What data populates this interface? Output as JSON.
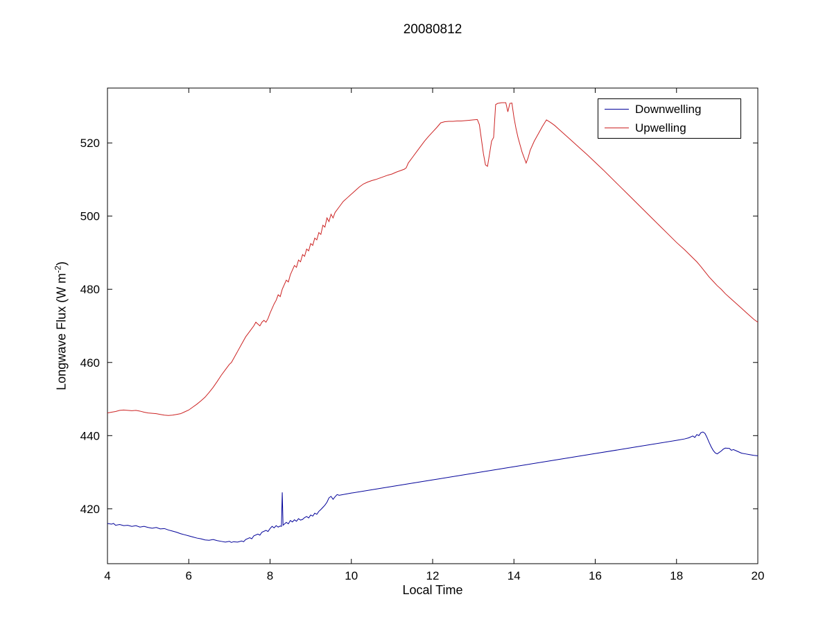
{
  "figure": {
    "title": "20080812"
  },
  "axes": {
    "xlabel": "Local Time",
    "ylabel_prefix": "Longwave Flux (W m",
    "ylabel_sup": "-2",
    "ylabel_suffix": ")"
  },
  "legend": {
    "entries": [
      {
        "label": "Downwelling"
      },
      {
        "label": "Upwelling"
      }
    ]
  },
  "chart_data": {
    "type": "line",
    "title": "20080812",
    "xlabel": "Local Time",
    "ylabel": "Longwave Flux (W m^-2)",
    "xlim": [
      4,
      20
    ],
    "ylim": [
      405,
      535
    ],
    "xticks": [
      4,
      6,
      8,
      10,
      12,
      14,
      16,
      18,
      20
    ],
    "yticks": [
      420,
      440,
      460,
      480,
      500,
      520
    ],
    "grid": false,
    "legend_position": "top-right",
    "series": [
      {
        "name": "Downwelling",
        "color": "#000099",
        "data": [
          [
            4.0,
            416.0
          ],
          [
            4.1,
            415.8
          ],
          [
            4.15,
            416.0
          ],
          [
            4.2,
            415.5
          ],
          [
            4.3,
            415.7
          ],
          [
            4.4,
            415.4
          ],
          [
            4.5,
            415.5
          ],
          [
            4.6,
            415.2
          ],
          [
            4.7,
            415.4
          ],
          [
            4.8,
            415.0
          ],
          [
            4.9,
            415.2
          ],
          [
            5.0,
            414.9
          ],
          [
            5.1,
            414.7
          ],
          [
            5.2,
            414.9
          ],
          [
            5.3,
            414.5
          ],
          [
            5.4,
            414.6
          ],
          [
            5.5,
            414.2
          ],
          [
            5.6,
            413.9
          ],
          [
            5.7,
            413.6
          ],
          [
            5.8,
            413.2
          ],
          [
            5.9,
            412.9
          ],
          [
            6.0,
            412.6
          ],
          [
            6.1,
            412.3
          ],
          [
            6.2,
            412.0
          ],
          [
            6.3,
            411.8
          ],
          [
            6.4,
            411.5
          ],
          [
            6.5,
            411.4
          ],
          [
            6.6,
            411.6
          ],
          [
            6.7,
            411.3
          ],
          [
            6.8,
            411.1
          ],
          [
            6.9,
            410.9
          ],
          [
            7.0,
            411.1
          ],
          [
            7.05,
            410.8
          ],
          [
            7.1,
            411.0
          ],
          [
            7.2,
            410.9
          ],
          [
            7.3,
            411.2
          ],
          [
            7.35,
            411.0
          ],
          [
            7.4,
            411.6
          ],
          [
            7.5,
            412.1
          ],
          [
            7.55,
            411.8
          ],
          [
            7.6,
            412.6
          ],
          [
            7.7,
            413.1
          ],
          [
            7.75,
            412.8
          ],
          [
            7.8,
            413.6
          ],
          [
            7.9,
            414.1
          ],
          [
            7.95,
            413.8
          ],
          [
            8.0,
            414.6
          ],
          [
            8.05,
            415.2
          ],
          [
            8.1,
            414.8
          ],
          [
            8.15,
            415.4
          ],
          [
            8.2,
            415.0
          ],
          [
            8.25,
            415.3
          ],
          [
            8.28,
            415.2
          ],
          [
            8.3,
            424.5
          ],
          [
            8.32,
            415.5
          ],
          [
            8.35,
            415.8
          ],
          [
            8.4,
            416.3
          ],
          [
            8.45,
            415.9
          ],
          [
            8.5,
            416.8
          ],
          [
            8.55,
            416.4
          ],
          [
            8.6,
            417.0
          ],
          [
            8.65,
            416.6
          ],
          [
            8.7,
            417.3
          ],
          [
            8.75,
            416.9
          ],
          [
            8.8,
            417.1
          ],
          [
            8.85,
            417.6
          ],
          [
            8.9,
            417.9
          ],
          [
            8.95,
            417.5
          ],
          [
            9.0,
            418.3
          ],
          [
            9.05,
            418.0
          ],
          [
            9.1,
            418.8
          ],
          [
            9.15,
            418.5
          ],
          [
            9.2,
            419.3
          ],
          [
            9.25,
            419.8
          ],
          [
            9.3,
            420.4
          ],
          [
            9.35,
            421.0
          ],
          [
            9.4,
            421.8
          ],
          [
            9.45,
            423.0
          ],
          [
            9.5,
            423.4
          ],
          [
            9.55,
            422.6
          ],
          [
            9.6,
            423.3
          ],
          [
            9.65,
            423.9
          ],
          [
            9.7,
            423.7
          ],
          [
            10.0,
            424.3
          ],
          [
            11.0,
            426.1
          ],
          [
            12.0,
            427.9
          ],
          [
            13.0,
            429.7
          ],
          [
            14.0,
            431.5
          ],
          [
            15.0,
            433.3
          ],
          [
            16.0,
            435.1
          ],
          [
            17.0,
            436.9
          ],
          [
            18.0,
            438.7
          ],
          [
            18.2,
            439.1
          ],
          [
            18.3,
            439.4
          ],
          [
            18.4,
            439.9
          ],
          [
            18.45,
            439.5
          ],
          [
            18.5,
            440.3
          ],
          [
            18.55,
            440.0
          ],
          [
            18.6,
            440.8
          ],
          [
            18.65,
            441.0
          ],
          [
            18.7,
            440.6
          ],
          [
            18.75,
            439.5
          ],
          [
            18.8,
            438.2
          ],
          [
            18.85,
            437.0
          ],
          [
            18.9,
            436.0
          ],
          [
            18.95,
            435.3
          ],
          [
            19.0,
            435.0
          ],
          [
            19.05,
            435.4
          ],
          [
            19.1,
            435.8
          ],
          [
            19.15,
            436.3
          ],
          [
            19.2,
            436.6
          ],
          [
            19.3,
            436.5
          ],
          [
            19.35,
            436.0
          ],
          [
            19.4,
            436.2
          ],
          [
            19.5,
            435.7
          ],
          [
            19.6,
            435.2
          ],
          [
            19.7,
            435.0
          ],
          [
            19.8,
            434.8
          ],
          [
            19.9,
            434.6
          ],
          [
            20.0,
            434.5
          ]
        ]
      },
      {
        "name": "Upwelling",
        "color": "#cc2222",
        "data": [
          [
            4.0,
            446.2
          ],
          [
            4.1,
            446.4
          ],
          [
            4.2,
            446.6
          ],
          [
            4.3,
            446.9
          ],
          [
            4.4,
            447.0
          ],
          [
            4.5,
            446.9
          ],
          [
            4.6,
            446.8
          ],
          [
            4.7,
            446.9
          ],
          [
            4.8,
            446.7
          ],
          [
            4.9,
            446.4
          ],
          [
            5.0,
            446.2
          ],
          [
            5.1,
            446.1
          ],
          [
            5.2,
            446.0
          ],
          [
            5.3,
            445.8
          ],
          [
            5.4,
            445.6
          ],
          [
            5.5,
            445.5
          ],
          [
            5.6,
            445.6
          ],
          [
            5.7,
            445.8
          ],
          [
            5.8,
            446.0
          ],
          [
            5.9,
            446.5
          ],
          [
            6.0,
            447.0
          ],
          [
            6.1,
            447.8
          ],
          [
            6.2,
            448.6
          ],
          [
            6.3,
            449.5
          ],
          [
            6.4,
            450.5
          ],
          [
            6.5,
            451.8
          ],
          [
            6.6,
            453.2
          ],
          [
            6.7,
            454.8
          ],
          [
            6.8,
            456.5
          ],
          [
            6.9,
            458.0
          ],
          [
            7.0,
            459.5
          ],
          [
            7.05,
            460.0
          ],
          [
            7.1,
            461.0
          ],
          [
            7.2,
            463.0
          ],
          [
            7.3,
            465.0
          ],
          [
            7.4,
            467.0
          ],
          [
            7.5,
            468.5
          ],
          [
            7.6,
            470.0
          ],
          [
            7.65,
            471.0
          ],
          [
            7.7,
            470.5
          ],
          [
            7.75,
            470.0
          ],
          [
            7.8,
            471.0
          ],
          [
            7.85,
            471.5
          ],
          [
            7.9,
            471.0
          ],
          [
            7.95,
            472.0
          ],
          [
            8.0,
            473.5
          ],
          [
            8.1,
            476.0
          ],
          [
            8.15,
            477.0
          ],
          [
            8.2,
            478.5
          ],
          [
            8.25,
            478.0
          ],
          [
            8.3,
            480.0
          ],
          [
            8.4,
            482.5
          ],
          [
            8.45,
            482.0
          ],
          [
            8.5,
            484.0
          ],
          [
            8.6,
            486.5
          ],
          [
            8.65,
            486.0
          ],
          [
            8.7,
            488.0
          ],
          [
            8.75,
            487.5
          ],
          [
            8.8,
            489.5
          ],
          [
            8.85,
            489.0
          ],
          [
            8.9,
            491.0
          ],
          [
            8.95,
            490.5
          ],
          [
            9.0,
            492.5
          ],
          [
            9.05,
            492.0
          ],
          [
            9.1,
            494.0
          ],
          [
            9.15,
            493.5
          ],
          [
            9.2,
            495.5
          ],
          [
            9.25,
            495.0
          ],
          [
            9.3,
            497.5
          ],
          [
            9.35,
            497.0
          ],
          [
            9.4,
            499.5
          ],
          [
            9.45,
            498.5
          ],
          [
            9.5,
            500.5
          ],
          [
            9.55,
            499.5
          ],
          [
            9.6,
            501.0
          ],
          [
            9.7,
            502.5
          ],
          [
            9.8,
            504.0
          ],
          [
            9.9,
            505.0
          ],
          [
            10.0,
            506.0
          ],
          [
            10.1,
            507.0
          ],
          [
            10.2,
            508.0
          ],
          [
            10.3,
            508.8
          ],
          [
            10.4,
            509.3
          ],
          [
            10.5,
            509.7
          ],
          [
            10.6,
            510.0
          ],
          [
            10.7,
            510.4
          ],
          [
            10.8,
            510.8
          ],
          [
            10.9,
            511.2
          ],
          [
            11.0,
            511.5
          ],
          [
            11.1,
            512.0
          ],
          [
            11.2,
            512.4
          ],
          [
            11.3,
            512.8
          ],
          [
            11.35,
            513.2
          ],
          [
            11.4,
            514.5
          ],
          [
            11.5,
            516.0
          ],
          [
            11.6,
            517.5
          ],
          [
            11.7,
            519.0
          ],
          [
            11.8,
            520.5
          ],
          [
            11.9,
            521.8
          ],
          [
            12.0,
            523.0
          ],
          [
            12.1,
            524.2
          ],
          [
            12.2,
            525.5
          ],
          [
            12.3,
            525.8
          ],
          [
            12.4,
            525.9
          ],
          [
            12.5,
            525.9
          ],
          [
            12.6,
            526.0
          ],
          [
            12.7,
            526.0
          ],
          [
            12.8,
            526.1
          ],
          [
            12.9,
            526.2
          ],
          [
            13.0,
            526.3
          ],
          [
            13.1,
            526.4
          ],
          [
            13.15,
            525.0
          ],
          [
            13.2,
            521.0
          ],
          [
            13.25,
            517.0
          ],
          [
            13.3,
            514.0
          ],
          [
            13.35,
            513.6
          ],
          [
            13.4,
            517.0
          ],
          [
            13.45,
            520.5
          ],
          [
            13.5,
            521.5
          ],
          [
            13.55,
            530.5
          ],
          [
            13.6,
            530.8
          ],
          [
            13.7,
            531.0
          ],
          [
            13.8,
            531.0
          ],
          [
            13.85,
            528.5
          ],
          [
            13.9,
            530.8
          ],
          [
            13.95,
            530.9
          ],
          [
            14.0,
            527.0
          ],
          [
            14.05,
            524.0
          ],
          [
            14.1,
            521.5
          ],
          [
            14.2,
            517.5
          ],
          [
            14.3,
            514.5
          ],
          [
            14.35,
            516.0
          ],
          [
            14.4,
            518.0
          ],
          [
            14.5,
            520.5
          ],
          [
            14.6,
            522.5
          ],
          [
            14.7,
            524.5
          ],
          [
            14.8,
            526.3
          ],
          [
            14.9,
            525.6
          ],
          [
            15.0,
            524.8
          ],
          [
            15.1,
            523.8
          ],
          [
            15.2,
            522.8
          ],
          [
            15.4,
            520.8
          ],
          [
            15.6,
            518.8
          ],
          [
            15.8,
            516.8
          ],
          [
            16.0,
            514.7
          ],
          [
            16.2,
            512.6
          ],
          [
            16.4,
            510.4
          ],
          [
            16.6,
            508.2
          ],
          [
            16.8,
            506.0
          ],
          [
            17.0,
            503.8
          ],
          [
            17.2,
            501.6
          ],
          [
            17.4,
            499.4
          ],
          [
            17.6,
            497.2
          ],
          [
            17.8,
            495.0
          ],
          [
            18.0,
            492.8
          ],
          [
            18.2,
            490.8
          ],
          [
            18.4,
            488.6
          ],
          [
            18.5,
            487.5
          ],
          [
            18.6,
            486.2
          ],
          [
            18.7,
            484.8
          ],
          [
            18.8,
            483.4
          ],
          [
            18.9,
            482.2
          ],
          [
            19.0,
            481.0
          ],
          [
            19.1,
            480.0
          ],
          [
            19.2,
            478.8
          ],
          [
            19.3,
            477.8
          ],
          [
            19.4,
            476.8
          ],
          [
            19.5,
            475.8
          ],
          [
            19.6,
            474.8
          ],
          [
            19.7,
            473.8
          ],
          [
            19.8,
            472.8
          ],
          [
            19.9,
            471.8
          ],
          [
            20.0,
            471.0
          ]
        ]
      }
    ]
  }
}
